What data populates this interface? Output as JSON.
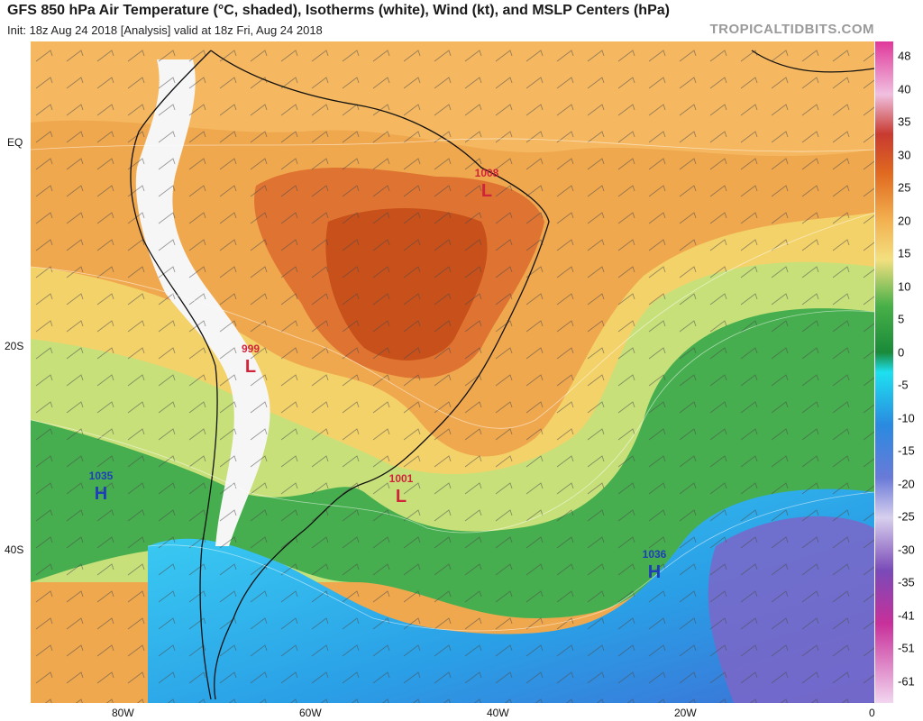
{
  "header": {
    "title": "GFS 850 hPa Air Temperature (°C, shaded), Isotherms (white), Wind (kt), and MSLP Centers (hPa)",
    "subtitle": "Init: 18z Aug 24 2018   [Analysis]   valid at 18z Fri, Aug 24 2018",
    "brand": "TROPICALTIDBITS.COM"
  },
  "axes": {
    "lat_labels": [
      "EQ",
      "20S",
      "40S"
    ],
    "lon_labels": [
      "80W",
      "60W",
      "40W",
      "20W",
      "0"
    ]
  },
  "colorbar": {
    "ticks": [
      "48",
      "40",
      "35",
      "30",
      "25",
      "20",
      "15",
      "10",
      "5",
      "0",
      "-5",
      "-10",
      "-15",
      "-20",
      "-25",
      "-30",
      "-35",
      "-41",
      "-51",
      "-61"
    ]
  },
  "pressure_centers": [
    {
      "type": "L",
      "value": "1008",
      "color": "#d0243a"
    },
    {
      "type": "L",
      "value": "999",
      "color": "#d0243a"
    },
    {
      "type": "L",
      "value": "1001",
      "color": "#d0243a"
    },
    {
      "type": "H",
      "value": "1035",
      "color": "#1f3fb8"
    },
    {
      "type": "H",
      "value": "1036",
      "color": "#1f3fb8"
    }
  ],
  "colors": {
    "warm": "#e8883a",
    "hot": "#c8501a",
    "mild": "#f3d26a",
    "green": "#3aa64a",
    "cold": "#2ec8ef",
    "frigid": "#7b66c8"
  }
}
